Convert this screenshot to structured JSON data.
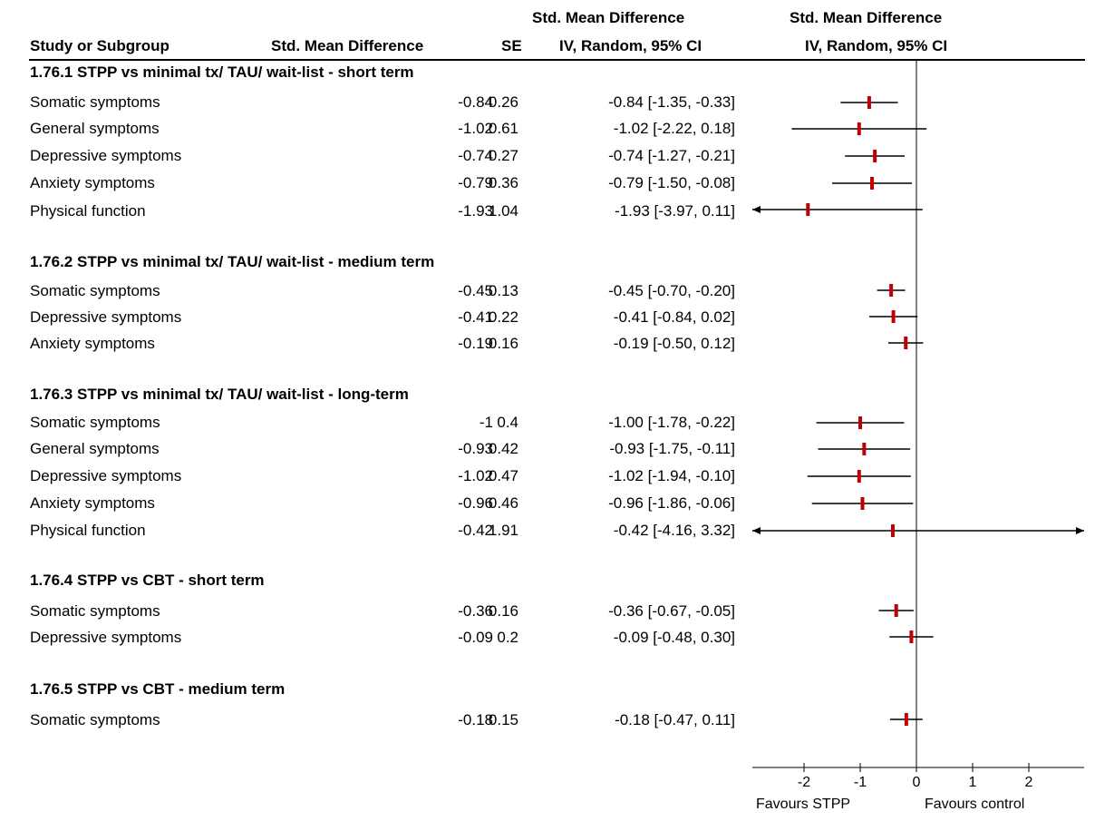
{
  "header": {
    "study_col": "Study or Subgroup",
    "smd_col": "Std. Mean Difference",
    "se_col": "SE",
    "ci_col_line1": "Std. Mean Difference",
    "ci_col_line2": "IV, Random, 95% CI",
    "plot_col_line1": "Std. Mean Difference",
    "plot_col_line2": "IV, Random, 95% CI"
  },
  "groups": [
    {
      "title": "1.76.1 STPP vs minimal tx/ TAU/ wait-list - short term",
      "rows": [
        {
          "name": "Somatic symptoms",
          "smd": "-0.84",
          "se": "0.26",
          "ci": "-0.84 [-1.35, -0.33]"
        },
        {
          "name": "General symptoms",
          "smd": "-1.02",
          "se": "0.61",
          "ci": "-1.02 [-2.22, 0.18]"
        },
        {
          "name": "Depressive symptoms",
          "smd": "-0.74",
          "se": "0.27",
          "ci": "-0.74 [-1.27, -0.21]"
        },
        {
          "name": "Anxiety symptoms",
          "smd": "-0.79",
          "se": "0.36",
          "ci": "-0.79 [-1.50, -0.08]"
        },
        {
          "name": "Physical function",
          "smd": "-1.93",
          "se": "1.04",
          "ci": "-1.93 [-3.97, 0.11]"
        }
      ]
    },
    {
      "title": "1.76.2 STPP vs minimal tx/ TAU/ wait-list - medium term",
      "rows": [
        {
          "name": "Somatic symptoms",
          "smd": "-0.45",
          "se": "0.13",
          "ci": "-0.45 [-0.70, -0.20]"
        },
        {
          "name": "Depressive symptoms",
          "smd": "-0.41",
          "se": "0.22",
          "ci": "-0.41 [-0.84, 0.02]"
        },
        {
          "name": "Anxiety symptoms",
          "smd": "-0.19",
          "se": "0.16",
          "ci": "-0.19 [-0.50, 0.12]"
        }
      ]
    },
    {
      "title": "1.76.3 STPP vs minimal tx/ TAU/ wait-list - long-term",
      "rows": [
        {
          "name": "Somatic symptoms",
          "smd": "-1",
          "se": "0.4",
          "ci": "-1.00 [-1.78, -0.22]"
        },
        {
          "name": "General symptoms",
          "smd": "-0.93",
          "se": "0.42",
          "ci": "-0.93 [-1.75, -0.11]"
        },
        {
          "name": "Depressive symptoms",
          "smd": "-1.02",
          "se": "0.47",
          "ci": "-1.02 [-1.94, -0.10]"
        },
        {
          "name": "Anxiety symptoms",
          "smd": "-0.96",
          "se": "0.46",
          "ci": "-0.96 [-1.86, -0.06]"
        },
        {
          "name": "Physical function",
          "smd": "-0.42",
          "se": "1.91",
          "ci": "-0.42 [-4.16, 3.32]"
        }
      ]
    },
    {
      "title": "1.76.4 STPP vs CBT - short term",
      "rows": [
        {
          "name": "Somatic symptoms",
          "smd": "-0.36",
          "se": "0.16",
          "ci": "-0.36 [-0.67, -0.05]"
        },
        {
          "name": "Depressive symptoms",
          "smd": "-0.09",
          "se": "0.2",
          "ci": "-0.09 [-0.48, 0.30]"
        }
      ]
    },
    {
      "title": "1.76.5 STPP vs CBT - medium term",
      "rows": [
        {
          "name": "Somatic symptoms",
          "smd": "-0.18",
          "se": "0.15",
          "ci": "-0.18 [-0.47, 0.11]"
        }
      ]
    }
  ],
  "axis": {
    "ticks": [
      -2,
      -1,
      0,
      1,
      2
    ],
    "tick_labels": [
      "-2",
      "-1",
      "0",
      "1",
      "2"
    ],
    "favours_left": "Favours STPP",
    "favours_right": "Favours control"
  },
  "colors": {
    "marker": "#c00000",
    "line": "#000000"
  },
  "chart_data": {
    "type": "scatter",
    "subtype": "forest-plot",
    "title": "",
    "xlabel": "",
    "xlim": [
      -2.9,
      2.9
    ],
    "x_ticks": [
      -2,
      -1,
      0,
      1,
      2
    ],
    "null_line": 0,
    "grid": false,
    "series": [
      {
        "name": "1.76.1 STPP vs minimal tx/ TAU/ wait-list - short term",
        "points": [
          {
            "label": "Somatic symptoms",
            "estimate": -0.84,
            "lower": -1.35,
            "upper": -0.33
          },
          {
            "label": "General symptoms",
            "estimate": -1.02,
            "lower": -2.22,
            "upper": 0.18
          },
          {
            "label": "Depressive symptoms",
            "estimate": -0.74,
            "lower": -1.27,
            "upper": -0.21
          },
          {
            "label": "Anxiety symptoms",
            "estimate": -0.79,
            "lower": -1.5,
            "upper": -0.08
          },
          {
            "label": "Physical function",
            "estimate": -1.93,
            "lower": -3.97,
            "upper": 0.11
          }
        ]
      },
      {
        "name": "1.76.2 STPP vs minimal tx/ TAU/ wait-list - medium term",
        "points": [
          {
            "label": "Somatic symptoms",
            "estimate": -0.45,
            "lower": -0.7,
            "upper": -0.2
          },
          {
            "label": "Depressive symptoms",
            "estimate": -0.41,
            "lower": -0.84,
            "upper": 0.02
          },
          {
            "label": "Anxiety symptoms",
            "estimate": -0.19,
            "lower": -0.5,
            "upper": 0.12
          }
        ]
      },
      {
        "name": "1.76.3 STPP vs minimal tx/ TAU/ wait-list - long-term",
        "points": [
          {
            "label": "Somatic symptoms",
            "estimate": -1.0,
            "lower": -1.78,
            "upper": -0.22
          },
          {
            "label": "General symptoms",
            "estimate": -0.93,
            "lower": -1.75,
            "upper": -0.11
          },
          {
            "label": "Depressive symptoms",
            "estimate": -1.02,
            "lower": -1.94,
            "upper": -0.1
          },
          {
            "label": "Anxiety symptoms",
            "estimate": -0.96,
            "lower": -1.86,
            "upper": -0.06
          },
          {
            "label": "Physical function",
            "estimate": -0.42,
            "lower": -4.16,
            "upper": 3.32
          }
        ]
      },
      {
        "name": "1.76.4 STPP vs CBT - short term",
        "points": [
          {
            "label": "Somatic symptoms",
            "estimate": -0.36,
            "lower": -0.67,
            "upper": -0.05
          },
          {
            "label": "Depressive symptoms",
            "estimate": -0.09,
            "lower": -0.48,
            "upper": 0.3
          }
        ]
      },
      {
        "name": "1.76.5 STPP vs CBT - medium term",
        "points": [
          {
            "label": "Somatic symptoms",
            "estimate": -0.18,
            "lower": -0.47,
            "upper": 0.11
          }
        ]
      }
    ]
  }
}
